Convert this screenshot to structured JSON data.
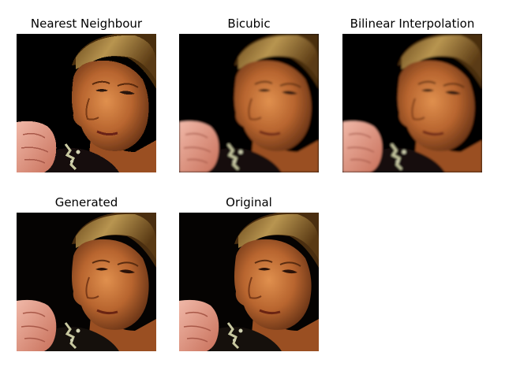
{
  "panels": [
    {
      "title": "Nearest Neighbour",
      "image": "face-portrait-image",
      "style": "nearest"
    },
    {
      "title": "Bicubic",
      "image": "face-portrait-image",
      "style": "smooth"
    },
    {
      "title": "Bilinear Interpolation",
      "image": "face-portrait-image",
      "style": "smooth"
    },
    {
      "title": "Generated",
      "image": "face-portrait-image",
      "style": "smooth"
    },
    {
      "title": "Original",
      "image": "face-portrait-image",
      "style": "smooth"
    }
  ],
  "colors": {
    "background": "#ffffff",
    "image_background": "#050302",
    "hair": "#8a6630",
    "skin": "#c0703a",
    "shirt": "#15100c",
    "hand": "#e8a590"
  }
}
